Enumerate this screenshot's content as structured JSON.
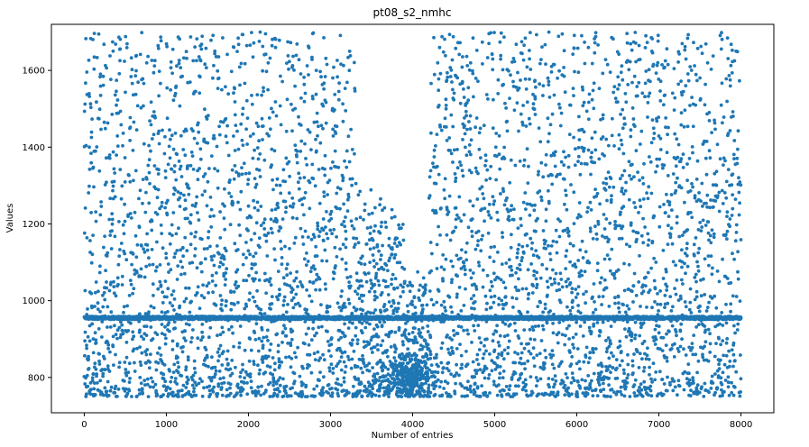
{
  "chart_data": {
    "type": "scatter",
    "title": "pt08_s2_nmhc",
    "xlabel": "Number of entries",
    "ylabel": "Values",
    "xlim": [
      -400,
      8400
    ],
    "ylim": [
      708,
      1720
    ],
    "x_ticks": [
      0,
      1000,
      2000,
      3000,
      4000,
      5000,
      6000,
      7000,
      8000
    ],
    "y_ticks": [
      800,
      1000,
      1200,
      1400,
      1600
    ],
    "grid": false,
    "legend": "none",
    "marker_color": "#1f77b4",
    "n_points": 7500,
    "x_range": [
      0,
      8000
    ],
    "y_range": [
      750,
      1700
    ],
    "dense_band": {
      "y": 955,
      "x_start": 0,
      "x_end": 8000
    },
    "sparse_gap": {
      "x_start": 3900,
      "x_end": 4200
    },
    "dense_cluster": {
      "x": 3950,
      "y": 800
    }
  }
}
